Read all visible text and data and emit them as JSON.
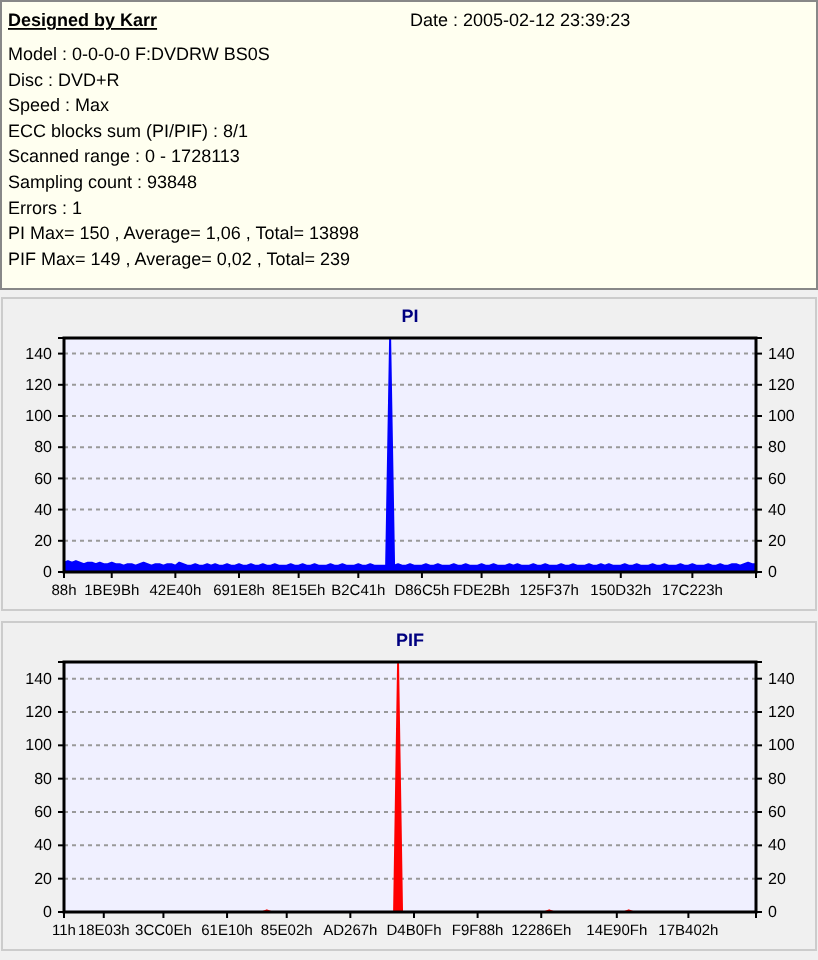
{
  "chart_data": [
    {
      "type": "other",
      "title": "Designed by Karr",
      "annotations": [
        "Date : 2005-02-12 23:39:23",
        "Model : 0-0-0-0 F:DVDRW BS0S",
        "Disc : DVD+R",
        "Speed : Max",
        "ECC blocks sum (PI/PIF) : 8/1",
        "Scanned range : 0 - 1728113",
        "Sampling count : 93848",
        "Errors : 1",
        "PI Max= 150 , Average= 1,06 , Total= 13898",
        "PIF Max= 149 , Average= 0,02 , Total= 239"
      ]
    },
    {
      "type": "area",
      "title": "PI",
      "categories": [
        "88h",
        null,
        null,
        null,
        null,
        null,
        null,
        null,
        null,
        null,
        null,
        null,
        "1BE9Bh",
        null,
        null,
        null,
        null,
        null,
        null,
        null,
        null,
        null,
        null,
        null,
        null,
        null,
        null,
        null,
        "42E40h",
        null,
        null,
        null,
        null,
        null,
        null,
        null,
        null,
        null,
        null,
        null,
        null,
        null,
        null,
        null,
        "691E8h",
        null,
        null,
        null,
        null,
        null,
        null,
        null,
        null,
        null,
        null,
        null,
        null,
        null,
        null,
        "8E15Eh",
        null,
        null,
        null,
        null,
        null,
        null,
        null,
        null,
        null,
        null,
        null,
        null,
        null,
        null,
        "B2C41h",
        null,
        null,
        null,
        null,
        null,
        null,
        null,
        null,
        null,
        null,
        null,
        null,
        null,
        null,
        null,
        "D86C5h",
        null,
        null,
        null,
        null,
        null,
        null,
        null,
        null,
        null,
        null,
        null,
        null,
        null,
        null,
        "FDE2Bh",
        null,
        null,
        null,
        null,
        null,
        null,
        null,
        null,
        null,
        null,
        null,
        null,
        null,
        null,
        null,
        null,
        "125F37h",
        null,
        null,
        null,
        null,
        null,
        null,
        null,
        null,
        null,
        null,
        null,
        null,
        null,
        null,
        null,
        null,
        null,
        "150D32h",
        null,
        null,
        null,
        null,
        null,
        null,
        null,
        null,
        null,
        null,
        null,
        null,
        null,
        null,
        null,
        null,
        null,
        "17C223h",
        null,
        null,
        null,
        null,
        null,
        null,
        null,
        null,
        null,
        null,
        null,
        null,
        null,
        null,
        null,
        null
      ],
      "ylim": [
        0,
        150
      ],
      "yticks": [
        0,
        20,
        40,
        60,
        80,
        100,
        120,
        140
      ],
      "y2lim": [
        0,
        150
      ],
      "y2ticks": [
        0,
        20,
        40,
        60,
        80,
        100,
        120,
        140
      ],
      "grid": "y",
      "line_style": "solid",
      "series": [
        {
          "color": "#0000ff",
          "values": [
            6,
            7,
            6,
            7,
            6,
            5,
            6,
            6,
            5,
            6,
            5,
            5,
            6,
            5,
            5,
            4,
            5,
            5,
            4,
            5,
            6,
            5,
            4,
            5,
            5,
            4,
            5,
            5,
            4,
            6,
            5,
            4,
            4,
            5,
            4,
            4,
            5,
            4,
            5,
            4,
            4,
            5,
            4,
            4,
            5,
            4,
            4,
            5,
            4,
            4,
            5,
            4,
            4,
            5,
            4,
            4,
            4,
            5,
            4,
            4,
            5,
            4,
            4,
            5,
            4,
            4,
            4,
            5,
            4,
            4,
            5,
            4,
            4,
            4,
            5,
            4,
            4,
            5,
            4,
            4,
            4,
            4,
            150,
            4,
            5,
            4,
            4,
            5,
            4,
            4,
            4,
            5,
            4,
            4,
            5,
            4,
            4,
            4,
            5,
            4,
            4,
            5,
            4,
            4,
            4,
            5,
            4,
            4,
            5,
            4,
            4,
            4,
            5,
            4,
            5,
            4,
            4,
            4,
            5,
            4,
            4,
            5,
            4,
            4,
            4,
            5,
            4,
            4,
            5,
            4,
            4,
            4,
            5,
            4,
            4,
            5,
            4,
            5,
            4,
            4,
            4,
            5,
            4,
            4,
            5,
            4,
            4,
            4,
            5,
            4,
            4,
            5,
            4,
            4,
            4,
            5,
            4,
            4,
            5,
            4,
            4,
            4,
            5,
            4,
            4,
            5,
            4,
            4,
            5,
            5,
            4,
            5,
            6,
            5,
            5
          ]
        }
      ]
    },
    {
      "type": "area",
      "title": "PIF",
      "categories": [
        "11h",
        null,
        null,
        null,
        null,
        null,
        null,
        null,
        null,
        null,
        "18E03h",
        null,
        null,
        null,
        null,
        null,
        null,
        null,
        null,
        null,
        null,
        null,
        null,
        null,
        null,
        "3CC0Eh",
        null,
        null,
        null,
        null,
        null,
        null,
        null,
        null,
        null,
        null,
        null,
        null,
        null,
        null,
        null,
        "61E10h",
        null,
        null,
        null,
        null,
        null,
        null,
        null,
        null,
        null,
        null,
        null,
        null,
        null,
        null,
        "85E02h",
        null,
        null,
        null,
        null,
        null,
        null,
        null,
        null,
        null,
        null,
        null,
        null,
        null,
        null,
        null,
        "AD267h",
        null,
        null,
        null,
        null,
        null,
        null,
        null,
        null,
        null,
        null,
        null,
        null,
        null,
        null,
        null,
        "D4B0Fh",
        null,
        null,
        null,
        null,
        null,
        null,
        null,
        null,
        null,
        null,
        null,
        null,
        null,
        null,
        null,
        "F9F88h",
        null,
        null,
        null,
        null,
        null,
        null,
        null,
        null,
        null,
        null,
        null,
        null,
        null,
        null,
        null,
        "12286Eh",
        null,
        null,
        null,
        null,
        null,
        null,
        null,
        null,
        null,
        null,
        null,
        null,
        null,
        null,
        null,
        null,
        null,
        null,
        "14E90Fh",
        null,
        null,
        null,
        null,
        null,
        null,
        null,
        null,
        null,
        null,
        null,
        null,
        null,
        null,
        null,
        null,
        null,
        "17B402h",
        null,
        null,
        null,
        null,
        null,
        null,
        null,
        null,
        null,
        null,
        null,
        null,
        null,
        null,
        null,
        null,
        null
      ],
      "ylim": [
        0,
        150
      ],
      "yticks": [
        0,
        20,
        40,
        60,
        80,
        100,
        120,
        140
      ],
      "y2lim": [
        0,
        150
      ],
      "y2ticks": [
        0,
        20,
        40,
        60,
        80,
        100,
        120,
        140
      ],
      "grid": "y",
      "line_style": "solid",
      "series": [
        {
          "color": "#ff0000",
          "values": [
            0,
            0,
            0,
            0,
            0,
            0,
            0,
            0,
            0,
            0,
            0,
            0,
            0,
            0,
            0,
            0,
            0,
            0,
            0,
            0,
            0,
            0,
            0,
            0,
            0,
            0,
            0,
            0,
            0,
            0,
            0,
            0,
            0,
            0,
            0,
            0,
            0,
            0,
            0,
            0,
            0,
            0,
            0,
            0,
            0,
            0,
            0,
            0,
            0,
            0,
            0,
            1,
            0,
            0,
            0,
            0,
            0,
            0,
            0,
            0,
            0,
            0,
            0,
            0,
            0,
            0,
            0,
            0,
            0,
            0,
            0,
            0,
            0,
            0,
            0,
            0,
            0,
            0,
            0,
            0,
            0,
            0,
            0,
            0,
            149,
            0,
            0,
            0,
            0,
            0,
            0,
            0,
            0,
            0,
            0,
            0,
            0,
            0,
            0,
            0,
            0,
            0,
            0,
            0,
            0,
            0,
            0,
            0,
            0,
            0,
            0,
            0,
            0,
            0,
            0,
            0,
            0,
            0,
            0,
            0,
            0,
            0,
            1,
            0,
            0,
            0,
            0,
            0,
            0,
            0,
            0,
            0,
            0,
            0,
            0,
            0,
            0,
            0,
            0,
            0,
            0,
            0,
            1,
            0,
            0,
            0,
            0,
            0,
            0,
            0,
            0,
            0,
            0,
            0,
            0,
            0,
            0,
            0,
            0,
            0,
            0,
            0,
            0,
            0,
            0,
            0,
            0,
            0,
            0,
            0,
            0,
            0,
            0,
            0,
            0
          ]
        }
      ]
    }
  ]
}
